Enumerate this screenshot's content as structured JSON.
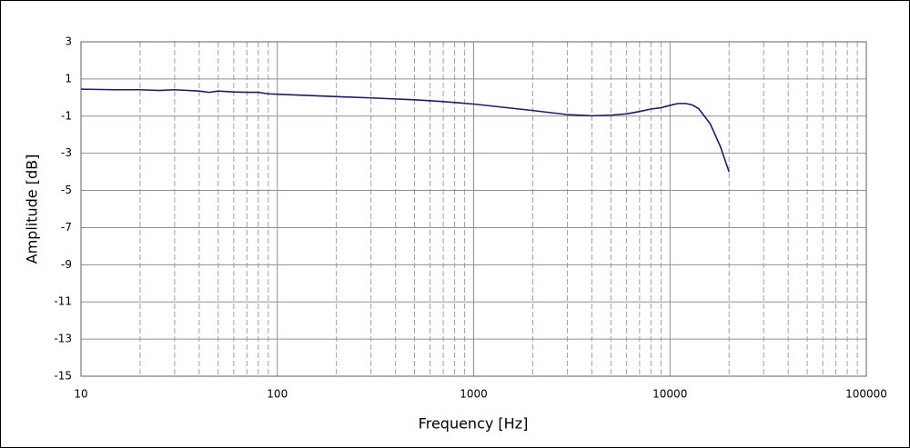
{
  "chart_data": {
    "type": "line",
    "x_label": "Frequency [Hz]",
    "y_label": "Amplitude [dB]",
    "x": [
      10,
      15,
      20,
      25,
      30,
      40,
      45,
      50,
      60,
      70,
      80,
      90,
      100,
      200,
      300,
      500,
      700,
      1000,
      2000,
      3000,
      4000,
      5000,
      6000,
      7000,
      8000,
      9000,
      10000,
      11000,
      12000,
      13000,
      14000,
      16000,
      18000,
      20000
    ],
    "values": [
      0.45,
      0.42,
      0.42,
      0.38,
      0.42,
      0.35,
      0.28,
      0.35,
      0.3,
      0.28,
      0.28,
      0.2,
      0.18,
      0.05,
      -0.02,
      -0.12,
      -0.22,
      -0.35,
      -0.7,
      -0.92,
      -0.98,
      -0.95,
      -0.88,
      -0.75,
      -0.62,
      -0.55,
      -0.42,
      -0.32,
      -0.32,
      -0.4,
      -0.6,
      -1.4,
      -2.6,
      -4.0
    ],
    "color": "#1c1c6b",
    "xscale": "log",
    "xlim": [
      10,
      100000
    ],
    "xticks": [
      10,
      100,
      1000,
      10000,
      100000
    ],
    "xminorticks": [
      20,
      30,
      40,
      50,
      60,
      70,
      80,
      90,
      200,
      300,
      400,
      500,
      600,
      700,
      800,
      900,
      2000,
      3000,
      4000,
      5000,
      6000,
      7000,
      8000,
      9000,
      20000,
      30000,
      40000,
      50000,
      60000,
      70000,
      80000,
      90000
    ],
    "ylim": [
      -15,
      3
    ],
    "yticks": [
      3,
      1,
      -1,
      -3,
      -5,
      -7,
      -9,
      -11,
      -13,
      -15
    ],
    "grid": true
  }
}
